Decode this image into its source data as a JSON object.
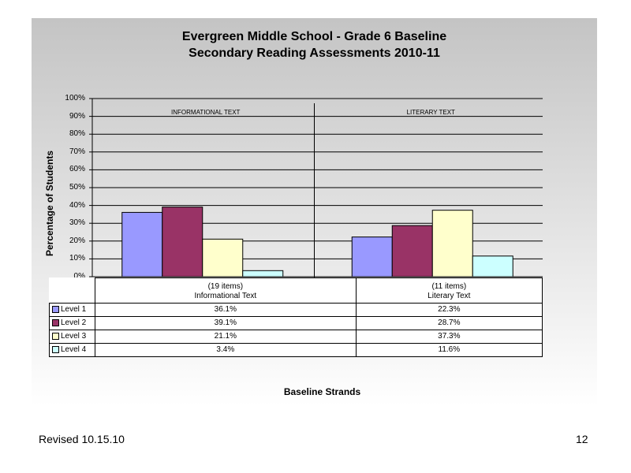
{
  "chart_data": {
    "type": "bar",
    "title": [
      "Evergreen Middle School - Grade 6 Baseline",
      "Secondary Reading Assessments 2010-11"
    ],
    "ylabel": "Percentage of Students",
    "xlabel": "Baseline Strands",
    "ylim": [
      0,
      100
    ],
    "y_ticks": [
      "0%",
      "10%",
      "20%",
      "30%",
      "40%",
      "50%",
      "60%",
      "70%",
      "80%",
      "90%",
      "100%"
    ],
    "grid": true,
    "categories": [
      {
        "items": "(19 items)",
        "name": "Informational Text",
        "panel_label": "INFORMATIONAL TEXT"
      },
      {
        "items": "(11 items)",
        "name": "Literary Text",
        "panel_label": "LITERARY TEXT"
      }
    ],
    "series": [
      {
        "name": "Level 1",
        "color": "#9999ff",
        "values": [
          36.1,
          22.3
        ],
        "labels": [
          "36.1%",
          "22.3%"
        ]
      },
      {
        "name": "Level 2",
        "color": "#993366",
        "values": [
          39.1,
          28.7
        ],
        "labels": [
          "39.1%",
          "28.7%"
        ]
      },
      {
        "name": "Level 3",
        "color": "#ffffcc",
        "values": [
          21.1,
          37.3
        ],
        "labels": [
          "21.1%",
          "37.3%"
        ]
      },
      {
        "name": "Level 4",
        "color": "#ccffff",
        "values": [
          3.4,
          11.6
        ],
        "labels": [
          "3.4%",
          "11.6%"
        ]
      }
    ]
  },
  "footer": {
    "revised": "Revised  10.15.10",
    "page_number": "12"
  }
}
